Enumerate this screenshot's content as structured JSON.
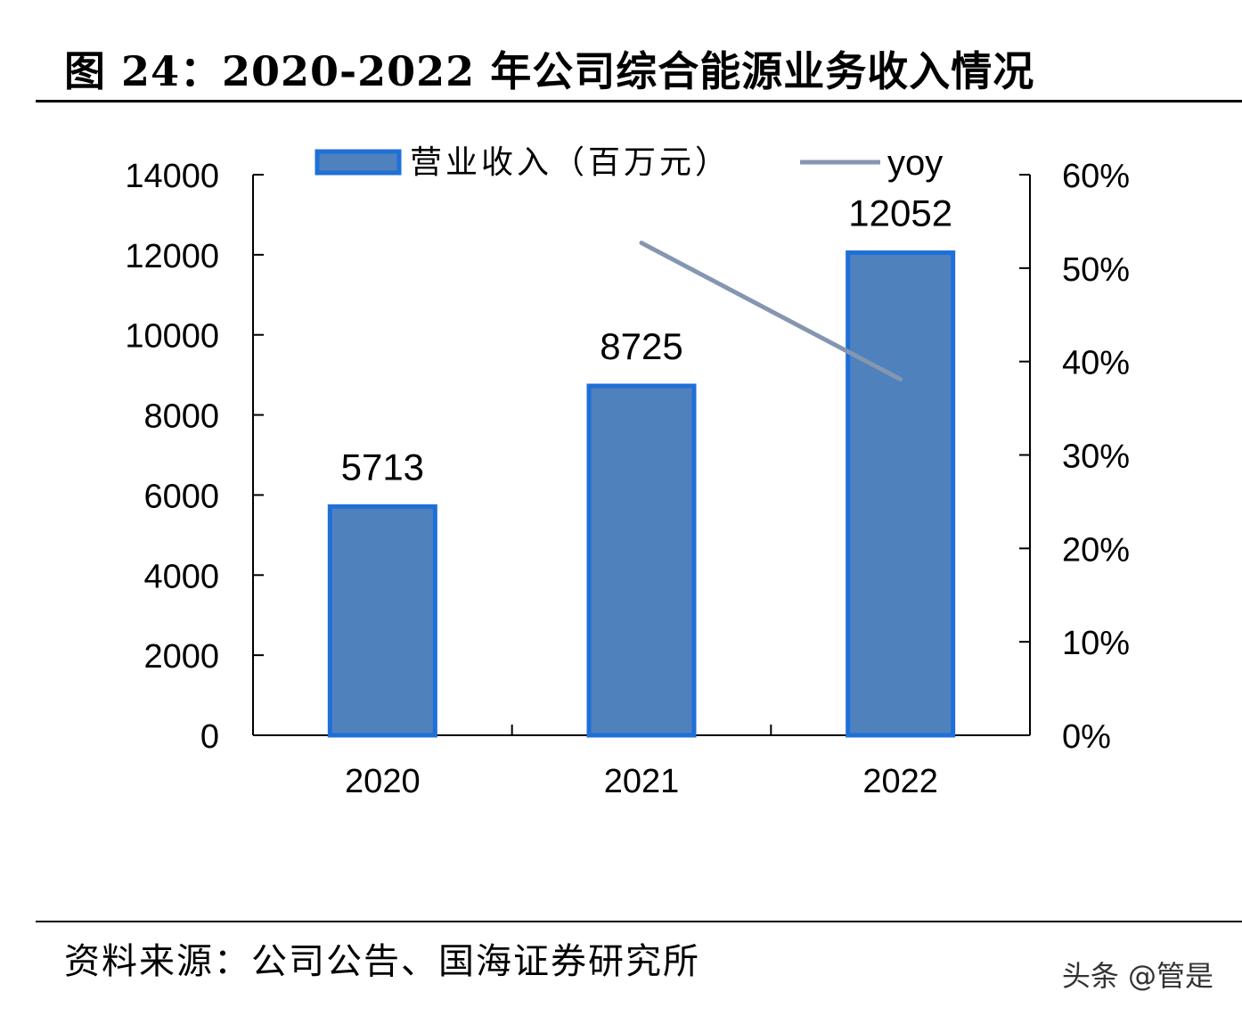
{
  "figure": {
    "title": "图 24：2020-2022 年公司综合能源业务收入情况",
    "source": "资料来源：公司公告、国海证券研究所",
    "watermark": "头条 @管是"
  },
  "chart_data": {
    "type": "bar",
    "categories": [
      "2020",
      "2021",
      "2022"
    ],
    "series": [
      {
        "name": "营业收入（百万元）",
        "type": "bar",
        "axis": "left",
        "values": [
          5713,
          8725,
          12052
        ],
        "data_labels": [
          "5713",
          "8725",
          "12052"
        ],
        "color": "#4F81BD",
        "edge_color": "#1F6FD8"
      },
      {
        "name": "yoy",
        "type": "line",
        "axis": "right",
        "values": [
          null,
          0.527,
          0.381
        ],
        "color": "#8496B0"
      }
    ],
    "y_left": {
      "lim": [
        0,
        14000
      ],
      "ticks": [
        "0",
        "2000",
        "4000",
        "6000",
        "8000",
        "10000",
        "12000",
        "14000"
      ]
    },
    "y_right": {
      "lim": [
        0,
        0.6
      ],
      "ticks": [
        "0%",
        "10%",
        "20%",
        "30%",
        "40%",
        "50%",
        "60%"
      ]
    },
    "grid": false,
    "legend": {
      "position": "top"
    }
  }
}
